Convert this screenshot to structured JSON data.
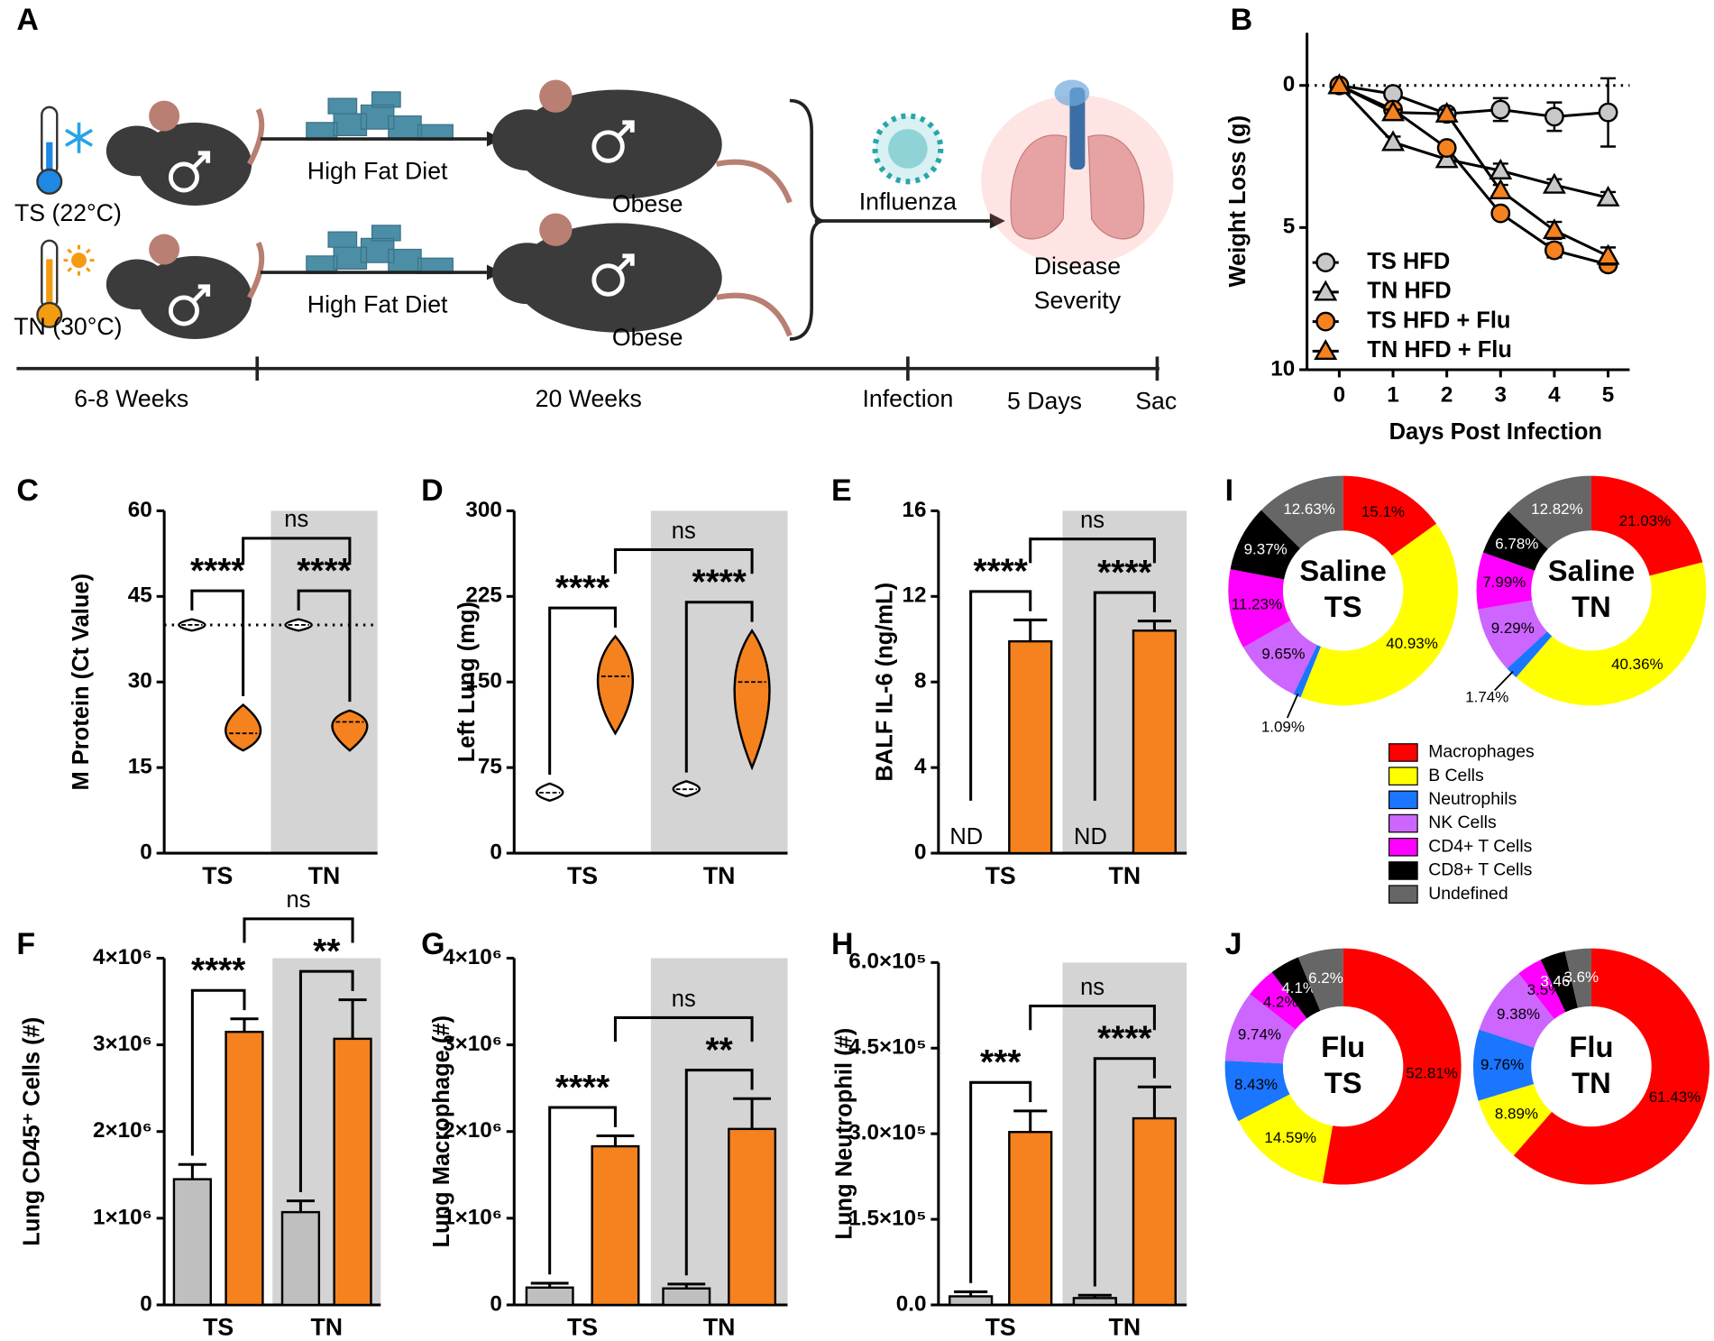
{
  "diagram": {
    "panel": "A",
    "groups": [
      {
        "condition": "TS (22°C)",
        "diet": "High Fat Diet",
        "outcome": "Obese"
      },
      {
        "condition": "TN (30°C)",
        "diet": "High Fat Diet",
        "outcome": "Obese"
      }
    ],
    "infection": "Influenza",
    "result": [
      "Disease",
      "Severity"
    ],
    "timeline": [
      "6-8 Weeks",
      "20 Weeks",
      "Infection",
      "5 Days",
      "Sac"
    ]
  },
  "chart_data": [
    {
      "panel": "B",
      "type": "line",
      "ylabel": "Weight Loss (g)",
      "xlabel": "Days Post Infection",
      "x": [
        0,
        1,
        2,
        3,
        4,
        5
      ],
      "xlim": [
        -0.6,
        5.4
      ],
      "xticks": [
        0,
        1,
        2,
        3,
        4,
        5
      ],
      "ylim": [
        10,
        -1.85
      ],
      "yticks": [
        0,
        5,
        10
      ],
      "reference_line": 0,
      "legend": "lower left",
      "series": [
        {
          "name": "TS HFD",
          "marker": "circle",
          "color": "#c8c8c8",
          "values": [
            0,
            0.3,
            1.0,
            0.85,
            1.1,
            0.95
          ],
          "errors": [
            0,
            0.1,
            0.2,
            0.4,
            0.5,
            1.2
          ]
        },
        {
          "name": "TN HFD",
          "marker": "triangle",
          "color": "#c8c8c8",
          "values": [
            0,
            2.0,
            2.6,
            3.0,
            3.5,
            3.95
          ],
          "errors": [
            0,
            0.2,
            0.2,
            0.25,
            0.2,
            0.2
          ]
        },
        {
          "name": "TS HFD + Flu",
          "marker": "circle",
          "color": "#f5821f",
          "values": [
            0,
            0.85,
            2.2,
            4.5,
            5.8,
            6.3
          ],
          "errors": [
            0,
            0.1,
            0.15,
            0.15,
            0.25,
            0.2
          ]
        },
        {
          "name": "TN HFD + Flu",
          "marker": "triangle",
          "color": "#f5821f",
          "values": [
            0,
            0.95,
            1.0,
            3.7,
            5.1,
            6.0
          ],
          "errors": [
            0,
            0.1,
            0.15,
            0.2,
            0.3,
            0.3
          ]
        }
      ]
    },
    {
      "panel": "C",
      "type": "violin",
      "ylabel": "M Protein (Ct Value)",
      "categories": [
        "TS",
        "TN"
      ],
      "ylim": [
        0,
        60
      ],
      "yticks": [
        0,
        15,
        30,
        45,
        60
      ],
      "reference_line": 40,
      "series": [
        {
          "color": "#ffffff",
          "values": [
            40,
            40
          ],
          "mins": [
            39,
            39
          ],
          "maxs": [
            41,
            41
          ]
        },
        {
          "color": "#f5821f",
          "values": [
            21,
            23
          ],
          "mins": [
            18,
            18
          ],
          "maxs": [
            26,
            25
          ]
        }
      ],
      "annotations": [
        "****",
        "****",
        "ns"
      ]
    },
    {
      "panel": "D",
      "type": "violin",
      "ylabel": "Left Lung (mg)",
      "categories": [
        "TS",
        "TN"
      ],
      "ylim": [
        0,
        300
      ],
      "yticks": [
        0,
        75,
        150,
        225,
        300
      ],
      "series": [
        {
          "color": "#ffffff",
          "values": [
            53,
            56
          ],
          "mins": [
            46,
            50
          ],
          "maxs": [
            61,
            63
          ]
        },
        {
          "color": "#f5821f",
          "values": [
            155,
            150
          ],
          "mins": [
            105,
            75
          ],
          "maxs": [
            190,
            195
          ]
        }
      ],
      "annotations": [
        "****",
        "****",
        "ns"
      ]
    },
    {
      "panel": "E",
      "type": "bar",
      "ylabel": "BALF IL-6 (ng/mL)",
      "categories": [
        "TS",
        "TN"
      ],
      "ylim": [
        0,
        16
      ],
      "yticks": [
        0,
        4,
        8,
        12,
        16
      ],
      "series": [
        {
          "color": "#bfbfbf",
          "values": [
            null,
            null
          ],
          "value_labels": [
            "ND",
            "ND"
          ],
          "errors": [
            null,
            null
          ]
        },
        {
          "color": "#f5821f",
          "values": [
            9.9,
            10.4
          ],
          "errors": [
            1.0,
            0.45
          ]
        }
      ],
      "annotations": [
        "****",
        "****",
        "ns"
      ]
    },
    {
      "panel": "F",
      "type": "bar",
      "ylabel": "Lung CD45⁺ Cells (#)",
      "categories": [
        "TS",
        "TN"
      ],
      "ylim": [
        0,
        4000000
      ],
      "yticks": [
        0,
        {
          "value": 1000000,
          "label": "1×10⁶"
        },
        {
          "value": 2000000,
          "label": "2×10⁶"
        },
        {
          "value": 3000000,
          "label": "3×10⁶"
        },
        {
          "value": 4000000,
          "label": "4×10⁶"
        }
      ],
      "series": [
        {
          "color": "#bfbfbf",
          "values": [
            1450000,
            1070000
          ],
          "errors": [
            170000,
            130000
          ]
        },
        {
          "color": "#f5821f",
          "values": [
            3150000,
            3070000
          ],
          "errors": [
            150000,
            450000
          ]
        }
      ],
      "annotations": [
        "****",
        "**",
        "ns"
      ]
    },
    {
      "panel": "G",
      "type": "bar",
      "ylabel": "Lung Macrophage (#)",
      "categories": [
        "TS",
        "TN"
      ],
      "ylim": [
        0,
        4000000
      ],
      "yticks": [
        0,
        {
          "value": 1000000,
          "label": "1×10⁶"
        },
        {
          "value": 2000000,
          "label": "2×10⁶"
        },
        {
          "value": 3000000,
          "label": "3×10⁶"
        },
        {
          "value": 4000000,
          "label": "4×10⁶"
        }
      ],
      "series": [
        {
          "color": "#bfbfbf",
          "values": [
            200000,
            190000
          ],
          "errors": [
            50000,
            50000
          ]
        },
        {
          "color": "#f5821f",
          "values": [
            1830000,
            2030000
          ],
          "errors": [
            120000,
            350000
          ]
        }
      ],
      "annotations": [
        "****",
        "**",
        "ns"
      ]
    },
    {
      "panel": "H",
      "type": "bar",
      "ylabel": "Lung Neutrophil (#)",
      "categories": [
        "TS",
        "TN"
      ],
      "ylim": [
        0,
        600000
      ],
      "yticks": [
        {
          "value": 0,
          "label": "0.0"
        },
        {
          "value": 150000,
          "label": "1.5×10⁵"
        },
        {
          "value": 300000,
          "label": "3.0×10⁵"
        },
        {
          "value": 450000,
          "label": "4.5×10⁵"
        },
        {
          "value": 600000,
          "label": "6.0×10⁵"
        }
      ],
      "series": [
        {
          "color": "#bfbfbf",
          "values": [
            15000,
            12000
          ],
          "errors": [
            8000,
            5000
          ]
        },
        {
          "color": "#f5821f",
          "values": [
            303000,
            327000
          ],
          "errors": [
            37000,
            55000
          ]
        }
      ],
      "annotations": [
        "***",
        "****",
        "ns"
      ]
    },
    {
      "panel": "I",
      "type": "donut",
      "categories": [
        "Macrophages",
        "B Cells",
        "Neutrophils",
        "NK Cells",
        "CD4+ T Cells",
        "CD8+ T Cells",
        "Undefined"
      ],
      "colors": [
        "#ff0000",
        "#ffff00",
        "#1a75ff",
        "#cc66ff",
        "#ff00ff",
        "#000000",
        "#666666"
      ],
      "pies": [
        {
          "title": [
            "Saline",
            "TS"
          ],
          "values": [
            15.1,
            40.93,
            1.09,
            9.65,
            11.23,
            9.37,
            12.63
          ],
          "value_labels": [
            "15.1%",
            "40.93%",
            "1.09%",
            "9.65%",
            "11.23%",
            "9.37%",
            "12.63%"
          ]
        },
        {
          "title": [
            "Saline",
            "TN"
          ],
          "values": [
            21.03,
            40.36,
            1.74,
            9.29,
            7.99,
            6.78,
            12.82
          ],
          "value_labels": [
            "21.03%",
            "40.36%",
            "1.74%",
            "9.29%",
            "7.99%",
            "6.78%",
            "12.82%"
          ]
        }
      ]
    },
    {
      "panel": "J",
      "type": "donut",
      "colors": [
        "#ff0000",
        "#ffff00",
        "#1a75ff",
        "#cc66ff",
        "#ff00ff",
        "#000000",
        "#666666"
      ],
      "pies": [
        {
          "title": [
            "Flu",
            "TS"
          ],
          "values": [
            52.81,
            14.59,
            8.43,
            9.74,
            4.2,
            4.1,
            6.2
          ],
          "value_labels": [
            "52.81%",
            "14.59%",
            "8.43%",
            "9.74%",
            "4.2%",
            "4.1%",
            "6.2%"
          ]
        },
        {
          "title": [
            "Flu",
            "TN"
          ],
          "values": [
            61.43,
            8.89,
            9.76,
            9.38,
            3.5,
            3.46,
            3.6
          ],
          "value_labels": [
            "61.43%",
            "8.89%",
            "9.76%",
            "9.38%",
            "3.5%",
            "3.46%",
            "3.6%"
          ]
        }
      ]
    }
  ]
}
